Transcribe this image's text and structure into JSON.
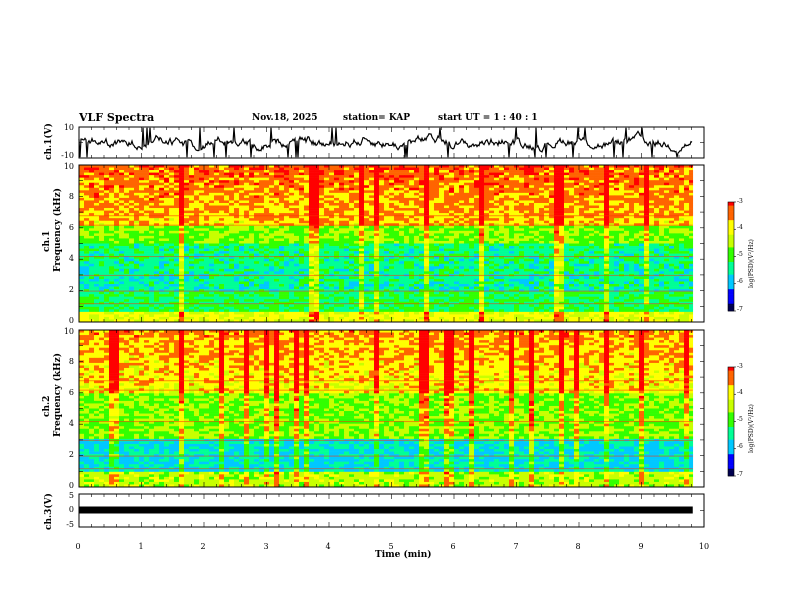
{
  "header": {
    "title": "VLF Spectra",
    "date": "Nov.18, 2025",
    "station": "station= KAP",
    "start": "start  UT =   1 : 40 : 1"
  },
  "chart_data": {
    "type": "heatmap",
    "xlabel": "Time  (min)",
    "x_ticks": [
      "0",
      "1",
      "2",
      "3",
      "4",
      "5",
      "6",
      "7",
      "8",
      "9",
      "10"
    ],
    "xlim": [
      0,
      10
    ],
    "data_end_min": 9.82,
    "panels": [
      {
        "name": "ch1-waveform",
        "ylabel": "ch.1(V)",
        "ylim": [
          -10,
          10
        ],
        "y_ticks": [
          "10",
          "-10"
        ]
      },
      {
        "name": "ch1-spectrogram",
        "ylabel_top": "ch.1",
        "ylabel": "Frequency  (kHz)",
        "ylim": [
          0,
          10
        ],
        "y_ticks": [
          "0",
          "2",
          "4",
          "6",
          "8",
          "10"
        ],
        "colorbar": {
          "label": "log(PSD)(V²/Hz)",
          "range": [
            -7,
            -3
          ],
          "ticks": [
            "-3",
            "-4",
            "-5",
            "-6",
            "-7"
          ]
        }
      },
      {
        "name": "ch2-spectrogram",
        "ylabel_top": "ch.2",
        "ylabel": "Frequency  (kHz)",
        "ylim": [
          0,
          10
        ],
        "y_ticks": [
          "0",
          "2",
          "4",
          "6",
          "8",
          "10"
        ],
        "colorbar": {
          "label": "log(PSD)(V²/Hz)",
          "range": [
            -7,
            -3
          ],
          "ticks": [
            "-3",
            "-4",
            "-5",
            "-6",
            "-7"
          ]
        }
      },
      {
        "name": "ch3-waveform",
        "ylabel": "ch.3(V)",
        "ylim": [
          -5,
          5
        ],
        "y_ticks": [
          "5",
          "0",
          "-5"
        ],
        "level": 0
      }
    ]
  },
  "colors": {
    "colormap": [
      "#000050",
      "#0000ff",
      "#00c8ff",
      "#00ff96",
      "#32ff00",
      "#c8ff00",
      "#ffff00",
      "#ff6400",
      "#ff0000",
      "#ffffff"
    ]
  }
}
